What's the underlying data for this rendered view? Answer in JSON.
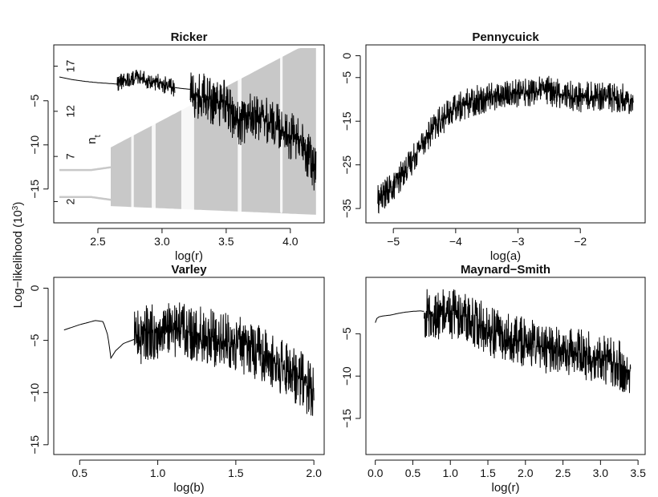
{
  "figure": {
    "shared_ylabel": "Log−likelihood (10",
    "shared_ylabel_sup": "3",
    "shared_ylabel_end": ")"
  },
  "chart_data": [
    {
      "id": "ricker",
      "type": "line",
      "title": "Ricker",
      "xlabel": "log(r)",
      "ylabel": "",
      "xlim": [
        2.2,
        4.22
      ],
      "ylim": [
        -18.2,
        0.7
      ],
      "xticks": [
        2.5,
        3.0,
        3.5,
        4.0
      ],
      "xtick_labels": [
        "2.5",
        "3.0",
        "3.5",
        "4.0"
      ],
      "yticks": [
        -5,
        -10,
        -15
      ],
      "ytick_labels": [
        "−5",
        "−10",
        "−15"
      ],
      "series": [
        {
          "kind": "smooth",
          "x": [
            2.2,
            2.3,
            2.4,
            2.5,
            2.6,
            2.65
          ],
          "y": [
            -2.3,
            -2.6,
            -2.8,
            -2.95,
            -3.05,
            -3.1
          ]
        },
        {
          "kind": "noisy",
          "x": [
            2.65,
            2.7,
            2.8,
            2.9,
            3.0,
            3.1
          ],
          "y": [
            -3.0,
            -2.7,
            -2.3,
            -2.6,
            -3.1,
            -3.6
          ],
          "spread": 2.0
        },
        {
          "kind": "smooth",
          "x": [
            3.1,
            3.15,
            3.22
          ],
          "y": [
            -3.5,
            -3.6,
            -3.7
          ]
        },
        {
          "kind": "noisy",
          "x": [
            3.22,
            3.3,
            3.4,
            3.5,
            3.55,
            3.6,
            3.7,
            3.8,
            3.9,
            4.0,
            4.1,
            4.2
          ],
          "y": [
            -4.2,
            -4.5,
            -5.0,
            -5.3,
            -6.5,
            -7.5,
            -6.5,
            -7.0,
            -8.0,
            -9.0,
            -10.0,
            -13.0
          ],
          "spread": 5.5
        }
      ],
      "inset": {
        "ylabel": "n",
        "ylabel_sub": "t",
        "yticks": [
          2,
          7,
          12,
          17
        ],
        "ytick_labels": [
          "2",
          "7",
          "12",
          "17"
        ],
        "ylim": [
          0,
          19
        ]
      }
    },
    {
      "id": "pennycuick",
      "type": "line",
      "title": "Pennycuick",
      "xlabel": "log(a)",
      "ylabel": "",
      "xlim": [
        -5.35,
        -1.05
      ],
      "ylim": [
        -37.0,
        1.2
      ],
      "xticks": [
        -5,
        -4,
        -3,
        -2
      ],
      "xtick_labels": [
        "−5",
        "−4",
        "−3",
        "−2"
      ],
      "yticks": [
        0,
        -5,
        -15,
        -25,
        -35
      ],
      "ytick_labels": [
        "0",
        "−5",
        "−15",
        "−25",
        "−35"
      ],
      "series": [
        {
          "kind": "noisy",
          "x": [
            -5.25,
            -5.0,
            -4.75,
            -4.5,
            -4.25,
            -4.0,
            -3.75,
            -3.5,
            -3.25,
            -3.0,
            -2.75,
            -2.5,
            -2.25,
            -2.0,
            -1.75,
            -1.5,
            -1.15
          ],
          "y": [
            -33.0,
            -30.0,
            -25.0,
            -19.0,
            -15.0,
            -12.0,
            -10.5,
            -9.5,
            -9.0,
            -8.5,
            -8.0,
            -8.0,
            -9.0,
            -9.5,
            -9.0,
            -9.5,
            -10.0
          ],
          "spread": 7.0
        }
      ]
    },
    {
      "id": "varley",
      "type": "line",
      "title": "Varley",
      "xlabel": "log(b)",
      "ylabel": "",
      "xlim": [
        0.37,
        2.03
      ],
      "ylim": [
        -15.4,
        0.5
      ],
      "xticks": [
        0.5,
        1.0,
        1.5,
        2.0
      ],
      "xtick_labels": [
        "0.5",
        "1.0",
        "1.5",
        "2.0"
      ],
      "yticks": [
        0,
        -5,
        -10,
        -15
      ],
      "ytick_labels": [
        "0",
        "−5",
        "−10",
        "−15"
      ],
      "series": [
        {
          "kind": "smooth",
          "x": [
            0.4,
            0.5,
            0.6,
            0.65,
            0.68,
            0.7,
            0.73,
            0.78,
            0.85
          ],
          "y": [
            -4.0,
            -3.5,
            -3.1,
            -3.2,
            -4.5,
            -6.7,
            -6.0,
            -5.3,
            -4.9
          ]
        },
        {
          "kind": "noisy",
          "x": [
            0.85,
            0.9,
            1.0,
            1.1,
            1.2,
            1.3,
            1.4,
            1.5,
            1.6,
            1.7,
            1.8,
            1.9,
            2.0
          ],
          "y": [
            -4.8,
            -4.5,
            -4.0,
            -4.0,
            -4.2,
            -4.5,
            -5.0,
            -5.3,
            -5.8,
            -6.5,
            -7.5,
            -8.5,
            -10.0
          ],
          "spread": 5.5
        }
      ]
    },
    {
      "id": "maynard-smith",
      "type": "line",
      "title": "Maynard−Smith",
      "xlabel": "log(r)",
      "ylabel": "",
      "xlim": [
        -0.05,
        3.52
      ],
      "ylim": [
        -18.6,
        1.0
      ],
      "xticks": [
        0.0,
        0.5,
        1.0,
        1.5,
        2.0,
        2.5,
        3.0,
        3.5
      ],
      "xtick_labels": [
        "0.0",
        "0.5",
        "1.0",
        "1.5",
        "2.0",
        "2.5",
        "3.0",
        "3.5"
      ],
      "yticks": [
        -5,
        -10,
        -15
      ],
      "ytick_labels": [
        "−5",
        "−10",
        "−15"
      ],
      "series": [
        {
          "kind": "smooth",
          "x": [
            0.0,
            0.02,
            0.05,
            0.1,
            0.2,
            0.3,
            0.4,
            0.5,
            0.6,
            0.65
          ],
          "y": [
            -3.7,
            -3.2,
            -3.0,
            -2.9,
            -2.8,
            -2.6,
            -2.45,
            -2.35,
            -2.3,
            -2.35
          ]
        },
        {
          "kind": "noisy",
          "x": [
            0.65,
            0.8,
            1.0,
            1.2,
            1.4,
            1.6,
            1.8,
            2.0,
            2.2,
            2.4,
            2.6,
            2.8,
            3.0,
            3.2,
            3.4
          ],
          "y": [
            -2.5,
            -2.7,
            -2.7,
            -3.0,
            -4.0,
            -5.0,
            -5.5,
            -6.0,
            -6.5,
            -7.0,
            -7.0,
            -7.5,
            -8.0,
            -8.5,
            -9.5
          ],
          "spread": 6.0
        }
      ]
    }
  ]
}
